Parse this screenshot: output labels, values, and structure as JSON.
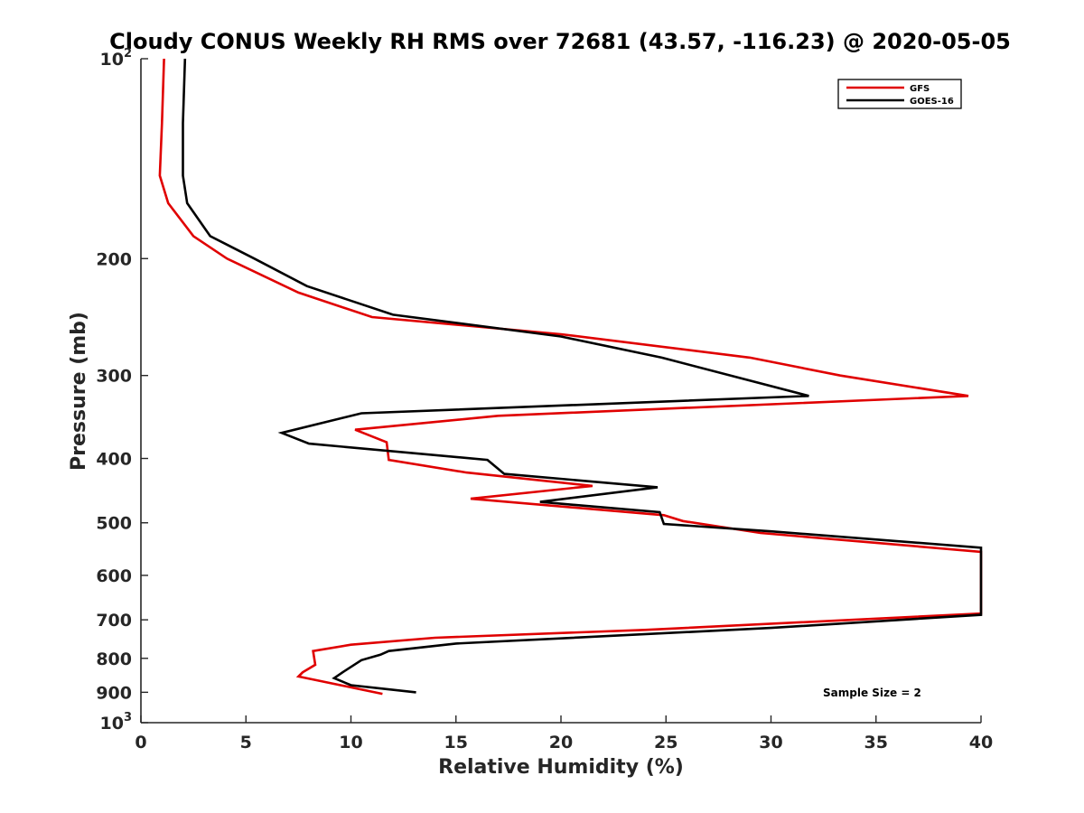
{
  "chart_data": {
    "type": "line",
    "title": "Cloudy CONUS Weekly RH RMS over 72681 (43.57, -116.23) @ 2020-05-05",
    "xlabel": "Relative Humidity (%)",
    "ylabel": "Pressure (mb)",
    "xlim": [
      0,
      40
    ],
    "ylim": [
      100,
      1000
    ],
    "y_scale": "log",
    "y_reversed": true,
    "x_ticks": [
      "0",
      "5",
      "10",
      "15",
      "20",
      "25",
      "30",
      "35",
      "40"
    ],
    "y_ticks": [
      {
        "value": 100,
        "base": "10",
        "exp": "2"
      },
      {
        "value": 200,
        "label": "200"
      },
      {
        "value": 300,
        "label": "300"
      },
      {
        "value": 400,
        "label": "400"
      },
      {
        "value": 500,
        "label": "500"
      },
      {
        "value": 600,
        "label": "600"
      },
      {
        "value": 700,
        "label": "700"
      },
      {
        "value": 800,
        "label": "800"
      },
      {
        "value": 900,
        "label": "900"
      },
      {
        "value": 1000,
        "base": "10",
        "exp": "3"
      }
    ],
    "legend_position": "top-right",
    "annotation": "Sample Size = 2",
    "series": [
      {
        "name": "GFS",
        "color": "#e00000",
        "points": [
          [
            1.1,
            100
          ],
          [
            1.0,
            125
          ],
          [
            0.9,
            150
          ],
          [
            1.3,
            165
          ],
          [
            2.5,
            185
          ],
          [
            4.1,
            200
          ],
          [
            7.5,
            225
          ],
          [
            11.0,
            245
          ],
          [
            20.0,
            260
          ],
          [
            29.0,
            282
          ],
          [
            33.3,
            300
          ],
          [
            39.4,
            322
          ],
          [
            17.0,
            345
          ],
          [
            10.2,
            362
          ],
          [
            11.7,
            378
          ],
          [
            11.8,
            402
          ],
          [
            15.5,
            420
          ],
          [
            21.5,
            440
          ],
          [
            15.7,
            460
          ],
          [
            24.9,
            487
          ],
          [
            25.8,
            497
          ],
          [
            29.5,
            518
          ],
          [
            40.0,
            553
          ],
          [
            40.0,
            685
          ],
          [
            24.0,
            725
          ],
          [
            14.0,
            745
          ],
          [
            10.0,
            763
          ],
          [
            8.2,
            780
          ],
          [
            8.3,
            818
          ],
          [
            7.7,
            840
          ],
          [
            7.5,
            852
          ],
          [
            11.5,
            905
          ]
        ]
      },
      {
        "name": "GOES-16",
        "color": "#000000",
        "points": [
          [
            2.1,
            100
          ],
          [
            2.0,
            125
          ],
          [
            2.0,
            150
          ],
          [
            2.2,
            165
          ],
          [
            3.3,
            185
          ],
          [
            5.4,
            200
          ],
          [
            7.9,
            220
          ],
          [
            12.0,
            243
          ],
          [
            20.0,
            262
          ],
          [
            24.8,
            282
          ],
          [
            31.8,
            322
          ],
          [
            10.5,
            342
          ],
          [
            6.7,
            366
          ],
          [
            8.0,
            380
          ],
          [
            16.5,
            402
          ],
          [
            17.3,
            422
          ],
          [
            24.6,
            442
          ],
          [
            19.0,
            465
          ],
          [
            24.7,
            482
          ],
          [
            24.9,
            502
          ],
          [
            30.0,
            515
          ],
          [
            40.0,
            545
          ],
          [
            40.0,
            688
          ],
          [
            30.0,
            720
          ],
          [
            15.0,
            760
          ],
          [
            11.8,
            780
          ],
          [
            11.4,
            790
          ],
          [
            10.5,
            805
          ],
          [
            9.6,
            840
          ],
          [
            9.2,
            857
          ],
          [
            10.0,
            878
          ],
          [
            13.1,
            900
          ]
        ]
      }
    ]
  }
}
